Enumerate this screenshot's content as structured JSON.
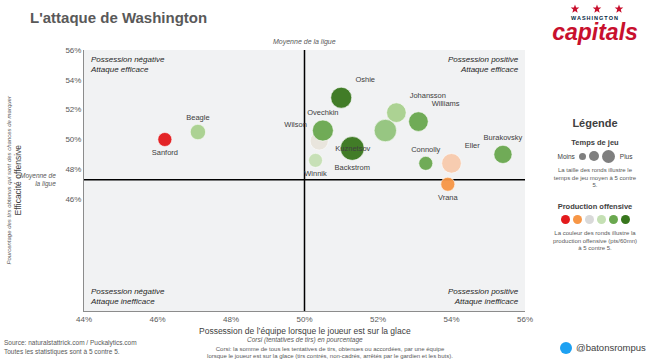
{
  "chart_data": {
    "type": "scatter",
    "title": "L'attaque de Washington",
    "x_label": "Possession de l’équipe lorsque le joueur est sur la glace",
    "x_sublabel": "Corsi (tentatives de tirs) en pourcentage",
    "y_label": "Efficacité offensive",
    "y_sublabel": "Pourcentage des tirs obtenus qui sont des chances de marquer",
    "names": [
      "Sanford",
      "Beagle",
      "Wilson",
      "Ovechkin",
      "Winnik",
      "Backstrom",
      "Kuznetsov",
      "Oshie",
      "Johansson",
      "Williams",
      "Connolly",
      "Eller",
      "Vrana",
      "Burakovsky"
    ],
    "x": [
      46.2,
      47.1,
      50.4,
      50.5,
      50.3,
      51.3,
      52.2,
      51.0,
      52.5,
      53.1,
      53.3,
      54.0,
      53.9,
      55.4
    ],
    "y": [
      50.0,
      50.5,
      49.9,
      50.6,
      48.6,
      49.4,
      50.6,
      52.8,
      51.8,
      51.2,
      48.4,
      48.4,
      47.0,
      49.0
    ],
    "sizes": [
      10,
      11,
      13,
      15,
      10,
      17,
      16,
      15,
      14,
      14,
      10,
      14,
      10,
      13
    ],
    "colors": [
      "#e31a1c",
      "#a9d18e",
      "#e9e5dc",
      "#6aa84f",
      "#c5e0b4",
      "#38761d",
      "#93c47d",
      "#38761d",
      "#a9d18e",
      "#6aa84f",
      "#6aa84f",
      "#f8cbad",
      "#f79646",
      "#6aa84f"
    ],
    "xlim": [
      44,
      56
    ],
    "xticks": [
      {
        "value": 44,
        "label": "44%"
      },
      {
        "value": 46,
        "label": "46%"
      },
      {
        "value": 48,
        "label": "48%"
      },
      {
        "value": 50,
        "label": "50%"
      },
      {
        "value": 52,
        "label": "52%"
      },
      {
        "value": 54,
        "label": "54%"
      },
      {
        "value": 56,
        "label": "56%"
      }
    ],
    "ylim": [
      38.5,
      56
    ],
    "yticks": [
      {
        "value": 46,
        "label": "46%"
      },
      {
        "value": 48,
        "label": "48%"
      },
      {
        "value": 50,
        "label": "50%"
      },
      {
        "value": 52,
        "label": "52%"
      },
      {
        "value": 54,
        "label": "54%"
      },
      {
        "value": 56,
        "label": "56%"
      }
    ],
    "grid": false,
    "reference_lines": {
      "x": 50,
      "y": 47.3,
      "x_text": "Moyenne de la ligue",
      "y_text": [
        "Moyenne de",
        "la ligue"
      ]
    },
    "quadrants": {
      "top_left": [
        "Possession négative",
        "Attaque efficace"
      ],
      "top_right": [
        "Possession positive",
        "Attaque efficace"
      ],
      "bottom_left": [
        "Possession négative",
        "Attaque inefficace"
      ],
      "bottom_right": [
        "Possession positive",
        "Attaque inefficace"
      ]
    },
    "guide": {
      "title": "Légende",
      "size": {
        "title": "Temps de jeu",
        "low": "Moins",
        "high": "Plus",
        "text": "La taille des ronds illustre le temps de jeu moyen à 5 contre 5."
      },
      "color": {
        "title": "Production offensive",
        "colors": [
          "#e31a1c",
          "#f79646",
          "#d9d9d9",
          "#c5e0b4",
          "#6aa84f",
          "#38761d"
        ],
        "text": "La couleur des ronds illustre la production offensive (pts/60mn) à 5 contre 5."
      }
    },
    "logo": {
      "small": "WASHINGTON",
      "large": "capitals"
    },
    "source": [
      "Source: naturalstattrick.com / Puckalytics.com",
      "Toutes les statistiques sont à 5 contre 5."
    ],
    "note": [
      "Corsi: la somme de tous les tentatives de tirs, obtenues ou accordées, par une équipe",
      "lorsque le joueur est sur la glace (tirs contrés, non-cadrés, arrêtés par le gardien et les buts)."
    ],
    "credit": "@batonsrompus"
  }
}
